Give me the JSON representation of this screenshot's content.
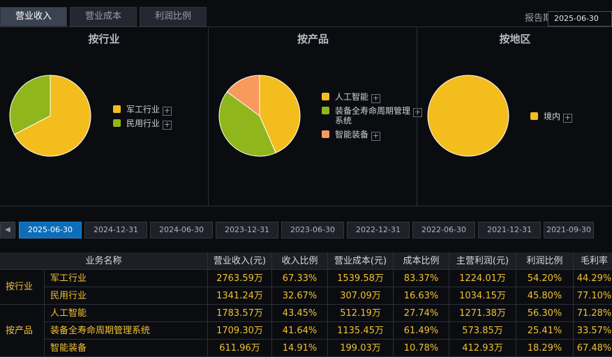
{
  "tabs": [
    "营业收入",
    "营业成本",
    "利润比例"
  ],
  "active_tab": 0,
  "report_period": {
    "label": "报告期",
    "value": "2025-06-30"
  },
  "colors": {
    "yellow": "#f3bd1e",
    "green": "#8fb61b",
    "orange": "#f79a5c",
    "active_blue": "#0d6db8",
    "value_text": "#f1c232"
  },
  "chart_data": [
    {
      "type": "pie",
      "title": "按行业",
      "categories": [
        "军工行业",
        "民用行业"
      ],
      "values": [
        67.33,
        32.67
      ],
      "colors": [
        "#f3bd1e",
        "#8fb61b"
      ],
      "legend": "right"
    },
    {
      "type": "pie",
      "title": "按产品",
      "categories": [
        "人工智能",
        "装备全寿命周期管理系统",
        "智能装备"
      ],
      "values": [
        43.45,
        41.64,
        14.91
      ],
      "colors": [
        "#f3bd1e",
        "#8fb61b",
        "#f79a5c"
      ],
      "legend": "right"
    },
    {
      "type": "pie",
      "title": "按地区",
      "categories": [
        "境内"
      ],
      "values": [
        100
      ],
      "colors": [
        "#f3bd1e"
      ],
      "legend": "right"
    }
  ],
  "legend_display": [
    [
      {
        "label": "军工行业"
      },
      {
        "label": "民用行业"
      }
    ],
    [
      {
        "label": "人工智能"
      },
      {
        "label": "装备全寿命周期管理",
        "label2": "系统"
      },
      {
        "label": "智能装备"
      }
    ],
    [
      {
        "label": "境内"
      }
    ]
  ],
  "plus_icon": "+",
  "dates": [
    "2025-06-30",
    "2024-12-31",
    "2024-06-30",
    "2023-12-31",
    "2023-06-30",
    "2022-12-31",
    "2022-06-30",
    "2021-12-31",
    "2021-09-30"
  ],
  "active_date": 0,
  "arrow_icon": "◀",
  "table": {
    "headers": [
      "业务名称",
      "营业收入(元)",
      "收入比例",
      "营业成本(元)",
      "成本比例",
      "主营利润(元)",
      "利润比例",
      "毛利率"
    ],
    "groups": [
      {
        "name": "按行业",
        "rows": [
          [
            "军工行业",
            "2763.59万",
            "67.33%",
            "1539.58万",
            "83.37%",
            "1224.01万",
            "54.20%",
            "44.29%"
          ],
          [
            "民用行业",
            "1341.24万",
            "32.67%",
            "307.09万",
            "16.63%",
            "1034.15万",
            "45.80%",
            "77.10%"
          ]
        ]
      },
      {
        "name": "按产品",
        "rows": [
          [
            "人工智能",
            "1783.57万",
            "43.45%",
            "512.19万",
            "27.74%",
            "1271.38万",
            "56.30%",
            "71.28%"
          ],
          [
            "装备全寿命周期管理系统",
            "1709.30万",
            "41.64%",
            "1135.45万",
            "61.49%",
            "573.85万",
            "25.41%",
            "33.57%"
          ],
          [
            "智能装备",
            "611.96万",
            "14.91%",
            "199.03万",
            "10.78%",
            "412.93万",
            "18.29%",
            "67.48%"
          ]
        ]
      }
    ]
  }
}
